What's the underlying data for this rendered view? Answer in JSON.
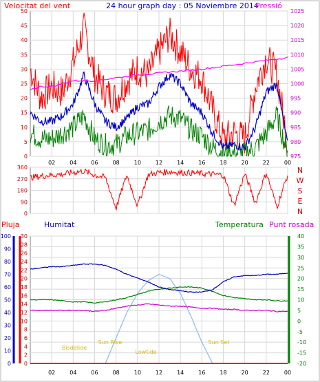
{
  "colors": {
    "wind_gust": "#ff0000",
    "wind_avg": "#0000cc",
    "wind_min": "#008000",
    "pressure": "#ff00ff",
    "humidity": "#0000aa",
    "temperature": "#008000",
    "dewpoint": "#cc00cc",
    "rain": "#ff0000",
    "sun": "#88bbee",
    "sun_labels": "#ffcc00",
    "frame": "#808080",
    "grid": "#d8d8d8"
  },
  "header": {
    "left_title": "Velocitat del vent",
    "center_title": "24 hour graph day : 05 Noviembre 2014",
    "right_title": "Pressió"
  },
  "compass": {
    "labels": [
      "N",
      "W",
      "S",
      "E",
      "N"
    ]
  },
  "bottom_header": {
    "rain": "Pluja",
    "humidity": "Humitat",
    "temperature": "Temperatura",
    "dewpoint": "Punt rosada"
  },
  "sun_labels": {
    "night_start": "Bisdelide",
    "sunrise": "Sun Rise",
    "daylight": "Lowtide",
    "sunset": "Sun Set",
    "night_end": "Sun Set"
  },
  "chart_data": [
    {
      "type": "line",
      "name": "wind_pressure",
      "xlabel": "",
      "x_ticks": [
        "02",
        "04",
        "06",
        "08",
        "10",
        "12",
        "14",
        "16",
        "18",
        "20",
        "22",
        "00"
      ],
      "y_ticks_left": [
        "0",
        "5",
        "10",
        "15",
        "20",
        "25",
        "30",
        "35",
        "40",
        "45",
        "50"
      ],
      "y_ticks_right": [
        "975",
        "980",
        "985",
        "990",
        "995",
        "1000",
        "1005",
        "1010",
        "1015",
        "1020",
        "1025"
      ],
      "ylim_left": [
        0,
        50
      ],
      "ylim_right": [
        975,
        1025
      ],
      "x": [
        0,
        1,
        2,
        3,
        4,
        5,
        6,
        7,
        8,
        9,
        10,
        11,
        12,
        13,
        14,
        15,
        16,
        17,
        18,
        19,
        20,
        21,
        22,
        23,
        24
      ],
      "series": [
        {
          "name": "gust",
          "axis": "left",
          "values": [
            30,
            20,
            24,
            22,
            32,
            44,
            28,
            22,
            20,
            26,
            30,
            28,
            36,
            42,
            36,
            30,
            27,
            16,
            6,
            8,
            6,
            24,
            34,
            28,
            4
          ]
        },
        {
          "name": "average",
          "axis": "left",
          "values": [
            15,
            12,
            12,
            14,
            18,
            28,
            18,
            12,
            10,
            13,
            17,
            18,
            24,
            28,
            25,
            18,
            15,
            8,
            3,
            4,
            3,
            10,
            22,
            25,
            4
          ]
        },
        {
          "name": "minimum",
          "axis": "left",
          "values": [
            8,
            6,
            6,
            8,
            10,
            14,
            6,
            4,
            4,
            7,
            8,
            9,
            12,
            14,
            13,
            9,
            7,
            3,
            1,
            1,
            1,
            3,
            8,
            14,
            1
          ]
        },
        {
          "name": "pressure",
          "axis": "right",
          "values": [
            998,
            999,
            999,
            1000,
            1001,
            1001,
            1001,
            1001.5,
            1002,
            1002.5,
            1003,
            1003.3,
            1003.6,
            1004,
            1004.3,
            1004.6,
            1005,
            1005.5,
            1006,
            1006.5,
            1007,
            1007.5,
            1008,
            1008.5,
            1009
          ]
        }
      ]
    },
    {
      "type": "line",
      "name": "wind_direction",
      "x_ticks": [
        "02",
        "04",
        "06",
        "08",
        "10",
        "12",
        "14",
        "16",
        "18",
        "20",
        "22",
        "00"
      ],
      "y_ticks": [
        "0",
        "90",
        "180",
        "270",
        "360"
      ],
      "ylim": [
        0,
        360
      ],
      "x": [
        0,
        1,
        2,
        3,
        4,
        5,
        6,
        7,
        8,
        9,
        10,
        11,
        12,
        13,
        14,
        15,
        16,
        17,
        18,
        19,
        20,
        21,
        22,
        23,
        24
      ],
      "series": [
        {
          "name": "direction",
          "values": [
            280,
            290,
            300,
            305,
            320,
            330,
            300,
            280,
            40,
            300,
            60,
            300,
            320,
            325,
            320,
            315,
            310,
            305,
            300,
            60,
            310,
            80,
            320,
            50,
            300
          ]
        }
      ]
    },
    {
      "type": "line",
      "name": "humidity_temperature",
      "x_ticks": [
        "02",
        "04",
        "06",
        "08",
        "10",
        "12",
        "14",
        "16",
        "18",
        "20",
        "22",
        "00"
      ],
      "y_ticks_left_outer": [
        "0",
        "10",
        "20",
        "30",
        "40",
        "50",
        "60",
        "70",
        "80",
        "90",
        "100"
      ],
      "y_ticks_left_inner": [
        "0",
        "2",
        "4",
        "6",
        "8",
        "10",
        "12",
        "14",
        "16",
        "18",
        "20",
        "22",
        "24",
        "26",
        "28",
        "30"
      ],
      "y_ticks_right": [
        "-20",
        "-15",
        "-10",
        "-5",
        "0",
        "5",
        "10",
        "15",
        "20",
        "25",
        "30",
        "35",
        "40"
      ],
      "ylim_humidity": [
        0,
        100
      ],
      "ylim_rain": [
        0,
        30
      ],
      "ylim_temperature": [
        -20,
        40
      ],
      "x": [
        0,
        1,
        2,
        3,
        4,
        5,
        6,
        7,
        8,
        9,
        10,
        11,
        12,
        13,
        14,
        15,
        16,
        17,
        18,
        19,
        20,
        21,
        22,
        23,
        24
      ],
      "series": [
        {
          "name": "humidity",
          "values": [
            74,
            75,
            76,
            76,
            77,
            78,
            78,
            77,
            74,
            70,
            67,
            64,
            60,
            58,
            57,
            56,
            56,
            58,
            64,
            68,
            69,
            69,
            70,
            70,
            71
          ]
        },
        {
          "name": "temperature",
          "values": [
            10,
            10,
            10,
            9.5,
            9,
            9,
            8.5,
            9,
            10,
            11,
            12.5,
            14,
            15,
            15.5,
            16,
            16,
            15.5,
            14,
            12,
            11,
            10.5,
            10,
            10,
            9.5,
            9.5
          ]
        },
        {
          "name": "dewpoint",
          "values": [
            5,
            5,
            5,
            5,
            5,
            5,
            4.5,
            5,
            6,
            7,
            7.5,
            8,
            7.5,
            7,
            7,
            6.5,
            6,
            6,
            5.5,
            5.5,
            5,
            5,
            5,
            4.5,
            4.5
          ]
        },
        {
          "name": "rain",
          "values": [
            0,
            0,
            0,
            0,
            0,
            0,
            0,
            0,
            0,
            0,
            0,
            0,
            0,
            0,
            0,
            0,
            0,
            0,
            0,
            0,
            0,
            0,
            0,
            0,
            0
          ]
        },
        {
          "name": "sun",
          "values": [
            null,
            null,
            null,
            null,
            null,
            null,
            null,
            0,
            12,
            24,
            33,
            39,
            42,
            40,
            33,
            22,
            10,
            0,
            null,
            null,
            null,
            null,
            null,
            null,
            null
          ]
        }
      ]
    }
  ]
}
